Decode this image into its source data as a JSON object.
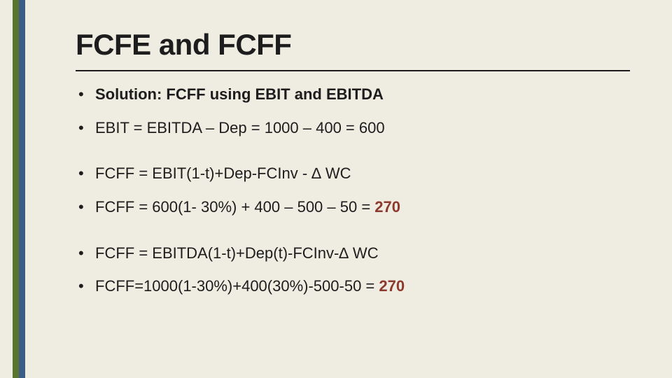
{
  "slide": {
    "background_color": "#efece1",
    "stripe_colors": {
      "green": "#58742e",
      "blue": "#3a5d85"
    },
    "title": "FCFE and FCFF",
    "title_fontsize": 42,
    "title_color": "#1d1d1d",
    "rule_color": "#1d1d1d",
    "bullet_fontsize": 22,
    "bullet_color": "#1d1d1d",
    "result_color": "#8d3a2e",
    "bullets": [
      {
        "text": "Solution: FCFF using EBIT and EBITDA",
        "bold": true
      },
      {
        "text": "EBIT = EBITDA – Dep = 1000 – 400 = 600"
      },
      {
        "text": "FCFF = EBIT(1-t)+Dep-FCInv - ∆ WC"
      },
      {
        "text_pre": "FCFF = 600(1- 30%) + 400 – 500 – 50 = ",
        "result": "270"
      },
      {
        "text": "FCFF = EBITDA(1-t)+Dep(t)-FCInv-∆ WC"
      },
      {
        "text_pre": "FCFF=1000(1-30%)+400(30%)-500-50 = ",
        "result": "270"
      }
    ]
  }
}
